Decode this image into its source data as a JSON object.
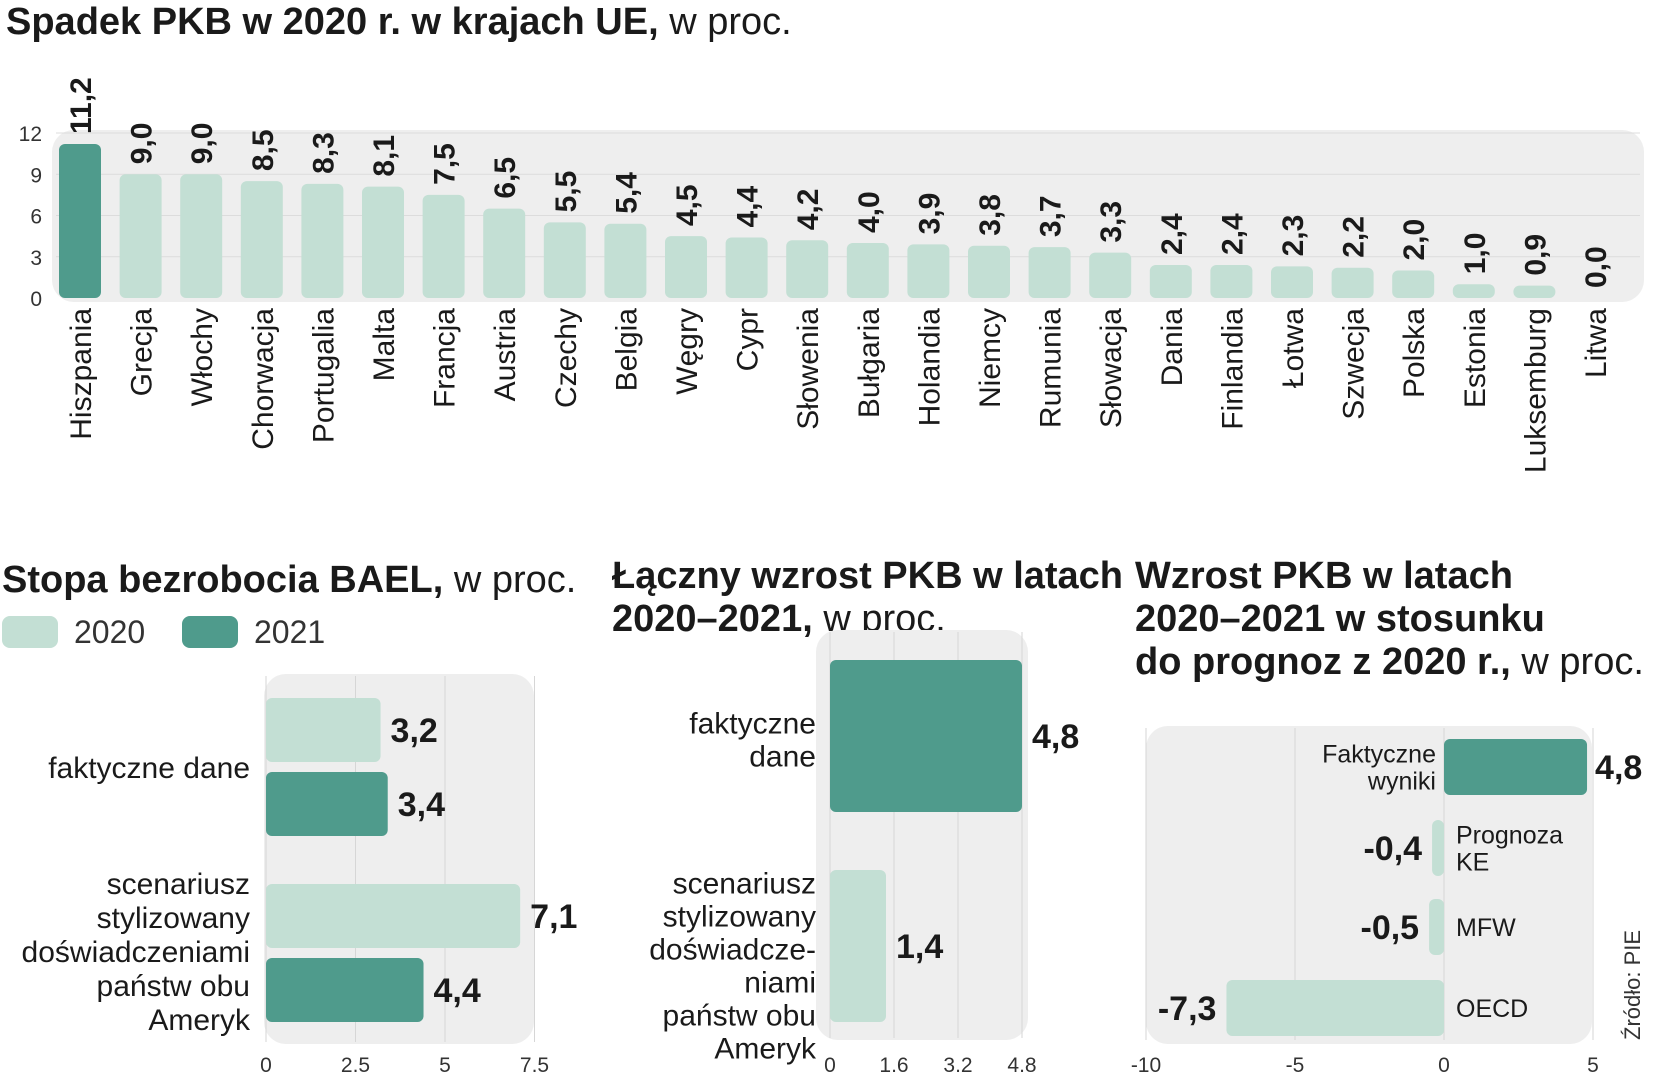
{
  "colors": {
    "light": "#c3dfd4",
    "dark": "#4f9b8c",
    "panel": "#eeeeee"
  },
  "source": "Źródło: PIE",
  "chart_data": [
    {
      "type": "bar",
      "title": "Spadek PKB w 2020 r. w krajach UE,",
      "title_unit": "w proc.",
      "categories": [
        "Hiszpania",
        "Grecja",
        "Włochy",
        "Chorwacja",
        "Portugalia",
        "Malta",
        "Francja",
        "Austria",
        "Czechy",
        "Belgia",
        "Węgry",
        "Cypr",
        "Słowenia",
        "Bułgaria",
        "Holandia",
        "Niemcy",
        "Rumunia",
        "Słowacja",
        "Dania",
        "Finlandia",
        "Łotwa",
        "Szwecja",
        "Polska",
        "Estonia",
        "Luksemburg",
        "Litwa"
      ],
      "values": [
        11.2,
        9.0,
        9.0,
        8.5,
        8.3,
        8.1,
        7.5,
        6.5,
        5.5,
        5.4,
        4.5,
        4.4,
        4.2,
        4.0,
        3.9,
        3.8,
        3.7,
        3.3,
        2.4,
        2.4,
        2.3,
        2.2,
        2.0,
        1.0,
        0.9,
        0.0
      ],
      "value_labels": [
        "11,2",
        "9,0",
        "9,0",
        "8,5",
        "8,3",
        "8,1",
        "7,5",
        "6,5",
        "5,5",
        "5,4",
        "4,5",
        "4,4",
        "4,2",
        "4,0",
        "3,9",
        "3,8",
        "3,7",
        "3,3",
        "2,4",
        "2,4",
        "2,3",
        "2,2",
        "2,0",
        "1,0",
        "0,9",
        "0,0"
      ],
      "highlight_index": 0,
      "ylim": [
        0,
        12
      ],
      "yticks": [
        "0",
        "3",
        "6",
        "9",
        "12"
      ],
      "grid": true
    },
    {
      "type": "bar",
      "orientation": "horizontal",
      "title": "Stopa bezrobocia BAEL,",
      "title_unit": "w proc.",
      "legend": [
        "2020",
        "2021"
      ],
      "legend_position": "top-left",
      "categories": [
        [
          "faktyczne dane"
        ],
        [
          "scenariusz",
          "stylizowany",
          "doświadczeniami",
          "państw obu",
          "Ameryk"
        ]
      ],
      "series": [
        {
          "name": "2020",
          "values": [
            3.2,
            7.1
          ],
          "labels": [
            "3,2",
            "7,1"
          ]
        },
        {
          "name": "2021",
          "values": [
            3.4,
            4.4
          ],
          "labels": [
            "3,4",
            "4,4"
          ]
        }
      ],
      "xlim": [
        0,
        8
      ],
      "xticks": [
        "0",
        "2.5",
        "5",
        "7.5"
      ],
      "grid": true
    },
    {
      "type": "bar",
      "orientation": "horizontal",
      "title": [
        "Łączny wzrost PKB w latach",
        "2020–2021,"
      ],
      "title_unit": "w proc.",
      "categories": [
        [
          "faktyczne",
          "dane"
        ],
        [
          "scenariusz",
          "stylizowany",
          "doświadcze-",
          "niami",
          "państw obu",
          "Ameryk"
        ]
      ],
      "values": [
        4.8,
        1.4
      ],
      "value_labels": [
        "4,8",
        "1,4"
      ],
      "xlim": [
        0,
        4.8
      ],
      "xticks": [
        "0",
        "1.6",
        "3.2",
        "4.8"
      ],
      "grid": true
    },
    {
      "type": "bar",
      "orientation": "horizontal",
      "title": [
        "Wzrost PKB w latach",
        "2020–2021 w stosunku",
        "do prognoz z 2020 r.,"
      ],
      "title_unit": "w proc.",
      "categories": [
        [
          "Faktyczne",
          "wyniki"
        ],
        [
          "Prognoza",
          "KE"
        ],
        [
          "MFW"
        ],
        [
          "OECD"
        ]
      ],
      "values": [
        4.8,
        -0.4,
        -0.5,
        -7.3
      ],
      "value_labels": [
        "4,8",
        "-0,4",
        "-0,5",
        "-7,3"
      ],
      "xlim": [
        -10,
        5
      ],
      "xticks": [
        "-10",
        "-5",
        "0",
        "5"
      ],
      "grid": true
    }
  ]
}
